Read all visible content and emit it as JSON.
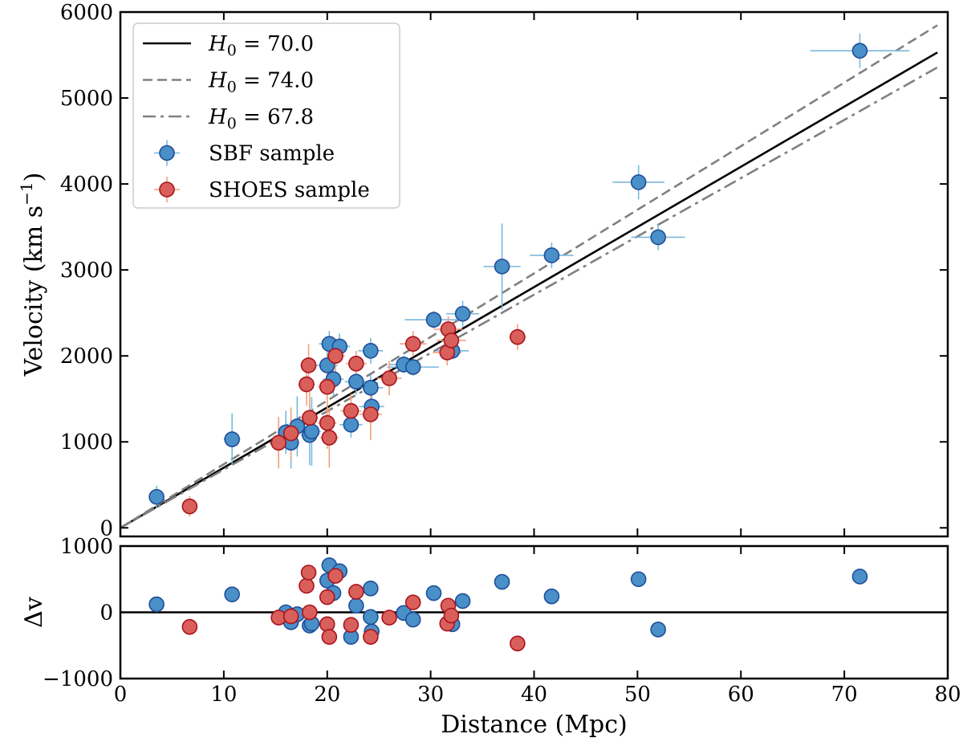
{
  "chart_data": [
    {
      "panel": "main",
      "type": "scatter",
      "xlabel": "Distance (Mpc)",
      "ylabel": "Velocity (km s",
      "ylabel_exp": "−1",
      "ylabel_close": ")",
      "xlim": [
        0,
        80
      ],
      "ylim": [
        -100,
        6000
      ],
      "xticks": [
        0,
        10,
        20,
        30,
        40,
        50,
        60,
        70,
        80
      ],
      "yticks": [
        0,
        1000,
        2000,
        3000,
        4000,
        5000,
        6000
      ],
      "xtick_labels": [
        "0",
        "10",
        "20",
        "30",
        "40",
        "50",
        "60",
        "70",
        "80"
      ],
      "ytick_labels": [
        "0",
        "1000",
        "2000",
        "3000",
        "4000",
        "5000",
        "6000"
      ],
      "legend_position": "upper-left",
      "grid": false,
      "lines": [
        {
          "label": "H0",
          "h0": 70.0,
          "value_text": "70.0",
          "style": "solid",
          "color": "#000000"
        },
        {
          "label": "H0",
          "h0": 74.0,
          "value_text": "74.0",
          "style": "dashed",
          "color": "#808080"
        },
        {
          "label": "H0",
          "h0": 67.8,
          "value_text": "67.8",
          "style": "dashdot",
          "color": "#808080"
        }
      ],
      "series": [
        {
          "name": "SBF sample",
          "marker_color": "#4a90c8",
          "edge_color": "#1f4e9a",
          "error_color": "#7ab8dc",
          "points": [
            {
              "x": 3.5,
              "y": 360,
              "xerr": 0.4,
              "yerr": 130
            },
            {
              "x": 10.8,
              "y": 1030,
              "xerr": 0.8,
              "yerr": 300
            },
            {
              "x": 16.0,
              "y": 1110,
              "xerr": 0.7,
              "yerr": 250
            },
            {
              "x": 16.5,
              "y": 990,
              "xerr": 0.8,
              "yerr": 300
            },
            {
              "x": 17.1,
              "y": 1180,
              "xerr": 0.8,
              "yerr": 350
            },
            {
              "x": 18.3,
              "y": 1080,
              "xerr": 0.9,
              "yerr": 350
            },
            {
              "x": 18.5,
              "y": 1120,
              "xerr": 0.9,
              "yerr": 400
            },
            {
              "x": 20.0,
              "y": 1890,
              "xerr": 1.0,
              "yerr": 250
            },
            {
              "x": 20.2,
              "y": 2140,
              "xerr": 1.0,
              "yerr": 150
            },
            {
              "x": 20.6,
              "y": 1730,
              "xerr": 1.0,
              "yerr": 200
            },
            {
              "x": 21.2,
              "y": 2110,
              "xerr": 1.0,
              "yerr": 150
            },
            {
              "x": 22.3,
              "y": 1200,
              "xerr": 1.1,
              "yerr": 150
            },
            {
              "x": 22.8,
              "y": 1700,
              "xerr": 1.1,
              "yerr": 150
            },
            {
              "x": 24.2,
              "y": 2060,
              "xerr": 1.2,
              "yerr": 150
            },
            {
              "x": 24.2,
              "y": 1630,
              "xerr": 1.2,
              "yerr": 150
            },
            {
              "x": 24.3,
              "y": 1410,
              "xerr": 1.2,
              "yerr": 150
            },
            {
              "x": 27.4,
              "y": 1900,
              "xerr": 1.4,
              "yerr": 100
            },
            {
              "x": 28.3,
              "y": 1870,
              "xerr": 2.5,
              "yerr": 100
            },
            {
              "x": 30.3,
              "y": 2420,
              "xerr": 2.8,
              "yerr": 100
            },
            {
              "x": 32.1,
              "y": 2060,
              "xerr": 1.6,
              "yerr": 100
            },
            {
              "x": 33.1,
              "y": 2490,
              "xerr": 1.6,
              "yerr": 150
            },
            {
              "x": 36.9,
              "y": 3040,
              "xerr": 1.8,
              "yerr": 500
            },
            {
              "x": 41.7,
              "y": 3170,
              "xerr": 2.1,
              "yerr": 150
            },
            {
              "x": 50.1,
              "y": 4020,
              "xerr": 2.5,
              "yerr": 200
            },
            {
              "x": 52.0,
              "y": 3380,
              "xerr": 2.6,
              "yerr": 150
            },
            {
              "x": 71.5,
              "y": 5550,
              "xerr": 4.8,
              "yerr": 200
            }
          ]
        },
        {
          "name": "SHOES sample",
          "marker_color": "#d95f5a",
          "edge_color": "#a8141e",
          "error_color": "#f2a07c",
          "points": [
            {
              "x": 6.7,
              "y": 250,
              "xerr": 0.3,
              "yerr": 120
            },
            {
              "x": 15.3,
              "y": 990,
              "xerr": 0.7,
              "yerr": 300
            },
            {
              "x": 16.5,
              "y": 1100,
              "xerr": 0.7,
              "yerr": 300
            },
            {
              "x": 18.0,
              "y": 1670,
              "xerr": 0.8,
              "yerr": 250
            },
            {
              "x": 18.2,
              "y": 1890,
              "xerr": 0.8,
              "yerr": 250
            },
            {
              "x": 18.3,
              "y": 1280,
              "xerr": 0.8,
              "yerr": 300
            },
            {
              "x": 20.0,
              "y": 1220,
              "xerr": 0.9,
              "yerr": 300
            },
            {
              "x": 20.0,
              "y": 1640,
              "xerr": 0.9,
              "yerr": 300
            },
            {
              "x": 20.2,
              "y": 1050,
              "xerr": 0.9,
              "yerr": 350
            },
            {
              "x": 20.8,
              "y": 2000,
              "xerr": 0.9,
              "yerr": 200
            },
            {
              "x": 22.3,
              "y": 1360,
              "xerr": 1.0,
              "yerr": 200
            },
            {
              "x": 22.8,
              "y": 1910,
              "xerr": 1.0,
              "yerr": 150
            },
            {
              "x": 24.2,
              "y": 1320,
              "xerr": 1.1,
              "yerr": 300
            },
            {
              "x": 26.0,
              "y": 1740,
              "xerr": 1.2,
              "yerr": 200
            },
            {
              "x": 28.3,
              "y": 2140,
              "xerr": 1.3,
              "yerr": 150
            },
            {
              "x": 31.6,
              "y": 2040,
              "xerr": 1.4,
              "yerr": 150
            },
            {
              "x": 31.7,
              "y": 2310,
              "xerr": 1.4,
              "yerr": 150
            },
            {
              "x": 32.0,
              "y": 2180,
              "xerr": 1.4,
              "yerr": 150
            },
            {
              "x": 38.4,
              "y": 2220,
              "xerr": 0.8,
              "yerr": 150
            }
          ]
        }
      ]
    },
    {
      "panel": "residual",
      "type": "scatter",
      "xlabel": "Distance (Mpc)",
      "ylabel": "Δv",
      "xlim": [
        0,
        80
      ],
      "ylim": [
        -1000,
        1000
      ],
      "yticks": [
        -1000,
        0,
        1000
      ],
      "ytick_labels": [
        "−1000",
        "0",
        "1000"
      ],
      "reference_line": 0,
      "series": [
        {
          "name": "SBF sample",
          "points": [
            {
              "x": 3.5,
              "y": 120
            },
            {
              "x": 10.8,
              "y": 270
            },
            {
              "x": 16.0,
              "y": 0
            },
            {
              "x": 16.5,
              "y": -150
            },
            {
              "x": 17.1,
              "y": -30
            },
            {
              "x": 18.3,
              "y": -200
            },
            {
              "x": 18.5,
              "y": -170
            },
            {
              "x": 20.0,
              "y": 480
            },
            {
              "x": 20.2,
              "y": 710
            },
            {
              "x": 20.6,
              "y": 290
            },
            {
              "x": 21.2,
              "y": 620
            },
            {
              "x": 22.3,
              "y": -370
            },
            {
              "x": 22.8,
              "y": 100
            },
            {
              "x": 24.2,
              "y": 360
            },
            {
              "x": 24.2,
              "y": -70
            },
            {
              "x": 24.3,
              "y": -290
            },
            {
              "x": 27.4,
              "y": -10
            },
            {
              "x": 28.3,
              "y": -110
            },
            {
              "x": 30.3,
              "y": 290
            },
            {
              "x": 32.1,
              "y": -180
            },
            {
              "x": 33.1,
              "y": 170
            },
            {
              "x": 36.9,
              "y": 460
            },
            {
              "x": 41.7,
              "y": 240
            },
            {
              "x": 50.1,
              "y": 500
            },
            {
              "x": 52.0,
              "y": -260
            },
            {
              "x": 71.5,
              "y": 540
            }
          ]
        },
        {
          "name": "SHOES sample",
          "points": [
            {
              "x": 6.7,
              "y": -220
            },
            {
              "x": 15.3,
              "y": -80
            },
            {
              "x": 16.5,
              "y": -60
            },
            {
              "x": 18.0,
              "y": 400
            },
            {
              "x": 18.2,
              "y": 600
            },
            {
              "x": 18.3,
              "y": 0
            },
            {
              "x": 20.0,
              "y": -180
            },
            {
              "x": 20.0,
              "y": 230
            },
            {
              "x": 20.2,
              "y": -370
            },
            {
              "x": 20.8,
              "y": 550
            },
            {
              "x": 22.3,
              "y": -190
            },
            {
              "x": 22.8,
              "y": 310
            },
            {
              "x": 24.2,
              "y": -370
            },
            {
              "x": 26.0,
              "y": -80
            },
            {
              "x": 28.3,
              "y": 150
            },
            {
              "x": 31.6,
              "y": -170
            },
            {
              "x": 31.7,
              "y": 100
            },
            {
              "x": 32.0,
              "y": -50
            },
            {
              "x": 38.4,
              "y": -470
            }
          ]
        }
      ]
    }
  ]
}
